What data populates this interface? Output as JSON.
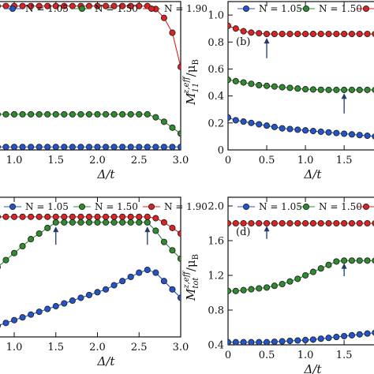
{
  "figure": {
    "panels_ylabel_b": {
      "main": "M",
      "sub": "11",
      "sup": "z,eff",
      "unit": "/μ",
      "unit_sub": "B"
    },
    "panels_ylabel_d": {
      "main": "M",
      "sub": "tot",
      "sup": "z,eff",
      "unit": "/μ",
      "unit_sub": "B"
    }
  },
  "chart_data": [
    {
      "id": "top-left",
      "type": "line",
      "title": "",
      "panel_label": "",
      "xlabel": "Δ/t",
      "ylabel": "",
      "xlim": [
        0.45,
        3.0
      ],
      "ylim": [
        0.0,
        1.0
      ],
      "xticks": [
        0.5,
        1.0,
        1.5,
        2.0,
        2.5,
        3.0
      ],
      "xtick_labels": [
        ".5",
        "1.0",
        "1.5",
        "2.0",
        "2.5",
        "3.0"
      ],
      "yticks": [],
      "legend": [
        "N = 1.05",
        "N = 1.50",
        "N = 1.90"
      ],
      "series": [
        {
          "name": "N = 1.05",
          "color": "#2255cc",
          "x": [
            0.5,
            0.6,
            0.7,
            0.8,
            0.9,
            1.0,
            1.1,
            1.2,
            1.3,
            1.4,
            1.5,
            1.6,
            1.7,
            1.8,
            1.9,
            2.0,
            2.1,
            2.2,
            2.3,
            2.4,
            2.5,
            2.6,
            2.7,
            2.8,
            2.9,
            3.0
          ],
          "y": [
            0.02,
            0.02,
            0.02,
            0.02,
            0.02,
            0.02,
            0.02,
            0.02,
            0.02,
            0.02,
            0.02,
            0.02,
            0.02,
            0.02,
            0.02,
            0.02,
            0.02,
            0.02,
            0.02,
            0.02,
            0.02,
            0.02,
            0.02,
            0.02,
            0.02,
            0.02
          ]
        },
        {
          "name": "N = 1.50",
          "color": "#2e8b2e",
          "x": [
            0.5,
            0.6,
            0.7,
            0.8,
            0.9,
            1.0,
            1.1,
            1.2,
            1.3,
            1.4,
            1.5,
            1.6,
            1.7,
            1.8,
            1.9,
            2.0,
            2.1,
            2.2,
            2.3,
            2.4,
            2.5,
            2.6,
            2.7,
            2.8,
            2.9,
            3.0
          ],
          "y": [
            0.24,
            0.24,
            0.24,
            0.24,
            0.24,
            0.24,
            0.24,
            0.24,
            0.24,
            0.24,
            0.24,
            0.24,
            0.24,
            0.24,
            0.24,
            0.24,
            0.24,
            0.24,
            0.24,
            0.24,
            0.24,
            0.24,
            0.22,
            0.19,
            0.15,
            0.11
          ]
        },
        {
          "name": "N = 1.90",
          "color": "#dd2222",
          "x": [
            0.5,
            0.6,
            0.7,
            0.8,
            0.9,
            1.0,
            1.1,
            1.2,
            1.3,
            1.4,
            1.5,
            1.6,
            1.7,
            1.8,
            1.9,
            2.0,
            2.1,
            2.2,
            2.3,
            2.4,
            2.5,
            2.6,
            2.7,
            2.8,
            2.9,
            3.0
          ],
          "y": [
            0.97,
            0.97,
            0.97,
            0.97,
            0.97,
            0.97,
            0.97,
            0.97,
            0.97,
            0.97,
            0.97,
            0.97,
            0.97,
            0.97,
            0.97,
            0.97,
            0.97,
            0.97,
            0.97,
            0.97,
            0.97,
            0.97,
            0.95,
            0.89,
            0.79,
            0.56
          ]
        }
      ],
      "arrows": []
    },
    {
      "id": "top-right",
      "type": "line",
      "title": "",
      "panel_label": "(b)",
      "xlabel": "Δ/t",
      "ylabel": "M11 z,eff / μB",
      "xlim": [
        0.0,
        2.1
      ],
      "ylim": [
        0.0,
        1.1
      ],
      "xticks": [
        0.0,
        0.5,
        1.0,
        1.5,
        2.0
      ],
      "xtick_labels": [
        "0",
        "0.5",
        "1.0",
        "1.5",
        "2."
      ],
      "yticks": [
        0.0,
        0.2,
        0.4,
        0.6,
        0.8,
        1.0
      ],
      "ytick_labels": [
        "0",
        "0.2",
        "0.4",
        "0.6",
        "0.8",
        "1.0"
      ],
      "legend": [
        "N = 1.05",
        "N = 1.50",
        "N = 1.90"
      ],
      "series": [
        {
          "name": "N = 1.05",
          "color": "#2255cc",
          "x": [
            0.0,
            0.1,
            0.2,
            0.3,
            0.4,
            0.5,
            0.6,
            0.7,
            0.8,
            0.9,
            1.0,
            1.1,
            1.2,
            1.3,
            1.4,
            1.5,
            1.6,
            1.7,
            1.8,
            1.9,
            2.0,
            2.1
          ],
          "y": [
            0.24,
            0.22,
            0.21,
            0.2,
            0.19,
            0.18,
            0.17,
            0.16,
            0.155,
            0.15,
            0.145,
            0.14,
            0.135,
            0.13,
            0.125,
            0.12,
            0.115,
            0.11,
            0.105,
            0.1,
            0.095,
            0.09
          ]
        },
        {
          "name": "N = 1.50",
          "color": "#2e8b2e",
          "x": [
            0.0,
            0.1,
            0.2,
            0.3,
            0.4,
            0.5,
            0.6,
            0.7,
            0.8,
            0.9,
            1.0,
            1.1,
            1.2,
            1.3,
            1.4,
            1.5,
            1.6,
            1.7,
            1.8,
            1.9,
            2.0,
            2.1
          ],
          "y": [
            0.52,
            0.51,
            0.5,
            0.49,
            0.48,
            0.475,
            0.47,
            0.465,
            0.46,
            0.455,
            0.45,
            0.448,
            0.446,
            0.445,
            0.445,
            0.445,
            0.445,
            0.445,
            0.445,
            0.445,
            0.445,
            0.445
          ]
        },
        {
          "name": "N = 1.90",
          "color": "#dd2222",
          "x": [
            0.0,
            0.1,
            0.2,
            0.3,
            0.4,
            0.5,
            0.6,
            0.7,
            0.8,
            0.9,
            1.0,
            1.1,
            1.2,
            1.3,
            1.4,
            1.5,
            1.6,
            1.7,
            1.8,
            1.9,
            2.0,
            2.1
          ],
          "y": [
            0.92,
            0.9,
            0.88,
            0.87,
            0.865,
            0.86,
            0.86,
            0.86,
            0.86,
            0.86,
            0.86,
            0.86,
            0.86,
            0.86,
            0.86,
            0.86,
            0.86,
            0.86,
            0.86,
            0.86,
            0.86,
            0.86
          ]
        }
      ],
      "arrows": [
        {
          "x": 0.5,
          "y_tip": 0.83,
          "y_tail": 0.68
        },
        {
          "x": 1.5,
          "y_tip": 0.42,
          "y_tail": 0.27
        }
      ]
    },
    {
      "id": "bottom-left",
      "type": "line",
      "title": "",
      "panel_label": "",
      "xlabel": "Δ/t",
      "ylabel": "",
      "xlim": [
        0.45,
        3.0
      ],
      "ylim": [
        0.0,
        1.0
      ],
      "xticks": [
        0.5,
        1.0,
        1.5,
        2.0,
        2.5,
        3.0
      ],
      "xtick_labels": [
        ".5",
        "1.0",
        "1.5",
        "2.0",
        "2.5",
        "3.0"
      ],
      "yticks": [],
      "legend": [
        "N = 1.05",
        "N = 1.50",
        "N = 1.90"
      ],
      "series": [
        {
          "name": "N = 1.05",
          "color": "#2255cc",
          "x": [
            0.5,
            0.6,
            0.7,
            0.8,
            0.9,
            1.0,
            1.1,
            1.2,
            1.3,
            1.4,
            1.5,
            1.6,
            1.7,
            1.8,
            1.9,
            2.0,
            2.1,
            2.2,
            2.3,
            2.4,
            2.5,
            2.6,
            2.7,
            2.8,
            2.9,
            3.0
          ],
          "y": [
            0.02,
            0.04,
            0.06,
            0.08,
            0.1,
            0.12,
            0.14,
            0.16,
            0.18,
            0.2,
            0.22,
            0.24,
            0.26,
            0.28,
            0.3,
            0.32,
            0.34,
            0.37,
            0.4,
            0.43,
            0.46,
            0.48,
            0.46,
            0.4,
            0.34,
            0.28
          ]
        },
        {
          "name": "N = 1.50",
          "color": "#2e8b2e",
          "x": [
            0.5,
            0.6,
            0.7,
            0.8,
            0.9,
            1.0,
            1.1,
            1.2,
            1.3,
            1.4,
            1.5,
            1.6,
            1.7,
            1.8,
            1.9,
            2.0,
            2.1,
            2.2,
            2.3,
            2.4,
            2.5,
            2.6,
            2.7,
            2.8,
            2.9,
            3.0
          ],
          "y": [
            0.38,
            0.42,
            0.46,
            0.5,
            0.55,
            0.6,
            0.65,
            0.7,
            0.74,
            0.78,
            0.82,
            0.82,
            0.82,
            0.82,
            0.82,
            0.82,
            0.82,
            0.82,
            0.82,
            0.82,
            0.82,
            0.82,
            0.76,
            0.68,
            0.62,
            0.56
          ]
        },
        {
          "name": "N = 1.90",
          "color": "#dd2222",
          "x": [
            0.5,
            0.6,
            0.7,
            0.8,
            0.9,
            1.0,
            1.1,
            1.2,
            1.3,
            1.4,
            1.5,
            1.6,
            1.7,
            1.8,
            1.9,
            2.0,
            2.1,
            2.2,
            2.3,
            2.4,
            2.5,
            2.6,
            2.7,
            2.8,
            2.9,
            3.0
          ],
          "y": [
            0.86,
            0.86,
            0.86,
            0.86,
            0.86,
            0.86,
            0.86,
            0.86,
            0.86,
            0.86,
            0.86,
            0.86,
            0.86,
            0.86,
            0.86,
            0.86,
            0.86,
            0.86,
            0.86,
            0.86,
            0.86,
            0.86,
            0.85,
            0.82,
            0.78,
            0.74
          ]
        }
      ],
      "arrows": [
        {
          "x": 0.5,
          "y_tip": 0.89,
          "y_tail": 1.0
        },
        {
          "x": 1.5,
          "y_tip": 0.79,
          "y_tail": 0.66
        },
        {
          "x": 2.6,
          "y_tip": 0.79,
          "y_tail": 0.66
        }
      ]
    },
    {
      "id": "bottom-right",
      "type": "line",
      "title": "",
      "panel_label": "(d)",
      "xlabel": "Δ/t",
      "ylabel": "Mtot z,eff / μB",
      "xlim": [
        0.0,
        2.1
      ],
      "ylim": [
        0.4,
        2.1
      ],
      "xticks": [
        0.0,
        0.5,
        1.0,
        1.5,
        2.0
      ],
      "xtick_labels": [
        "0",
        "0.5",
        "1.0",
        "1.5",
        "2."
      ],
      "yticks": [
        0.4,
        0.8,
        1.2,
        1.6,
        2.0
      ],
      "ytick_labels": [
        "0.4",
        "0.8",
        "1.2",
        "1.6",
        "2.0"
      ],
      "legend": [
        "N = 1.05",
        "N = 1.50",
        "N = 1.90"
      ],
      "series": [
        {
          "name": "N = 1.05",
          "color": "#2255cc",
          "x": [
            0.0,
            0.1,
            0.2,
            0.3,
            0.4,
            0.5,
            0.6,
            0.7,
            0.8,
            0.9,
            1.0,
            1.1,
            1.2,
            1.3,
            1.4,
            1.5,
            1.6,
            1.7,
            1.8,
            1.9,
            2.0,
            2.1
          ],
          "y": [
            0.43,
            0.43,
            0.43,
            0.43,
            0.43,
            0.43,
            0.435,
            0.44,
            0.445,
            0.45,
            0.455,
            0.46,
            0.47,
            0.48,
            0.49,
            0.5,
            0.51,
            0.52,
            0.53,
            0.54,
            0.55,
            0.56
          ]
        },
        {
          "name": "N = 1.50",
          "color": "#2e8b2e",
          "x": [
            0.0,
            0.1,
            0.2,
            0.3,
            0.4,
            0.5,
            0.6,
            0.7,
            0.8,
            0.9,
            1.0,
            1.1,
            1.2,
            1.3,
            1.4,
            1.5,
            1.6,
            1.7,
            1.8,
            1.9,
            2.0,
            2.1
          ],
          "y": [
            1.02,
            1.02,
            1.03,
            1.04,
            1.05,
            1.06,
            1.08,
            1.1,
            1.13,
            1.16,
            1.2,
            1.24,
            1.28,
            1.32,
            1.36,
            1.37,
            1.37,
            1.37,
            1.37,
            1.37,
            1.37,
            1.37
          ]
        },
        {
          "name": "N = 1.90",
          "color": "#dd2222",
          "x": [
            0.0,
            0.1,
            0.2,
            0.3,
            0.4,
            0.5,
            0.6,
            0.7,
            0.8,
            0.9,
            1.0,
            1.1,
            1.2,
            1.3,
            1.4,
            1.5,
            1.6,
            1.7,
            1.8,
            1.9,
            2.0,
            2.1
          ],
          "y": [
            1.8,
            1.8,
            1.8,
            1.8,
            1.8,
            1.8,
            1.8,
            1.8,
            1.8,
            1.8,
            1.8,
            1.8,
            1.8,
            1.8,
            1.8,
            1.8,
            1.8,
            1.8,
            1.8,
            1.8,
            1.8,
            1.8
          ]
        }
      ],
      "arrows": [
        {
          "x": 0.5,
          "y_tip": 1.77,
          "y_tail": 1.62
        },
        {
          "x": 1.5,
          "y_tip": 1.34,
          "y_tail": 1.19
        }
      ]
    }
  ]
}
